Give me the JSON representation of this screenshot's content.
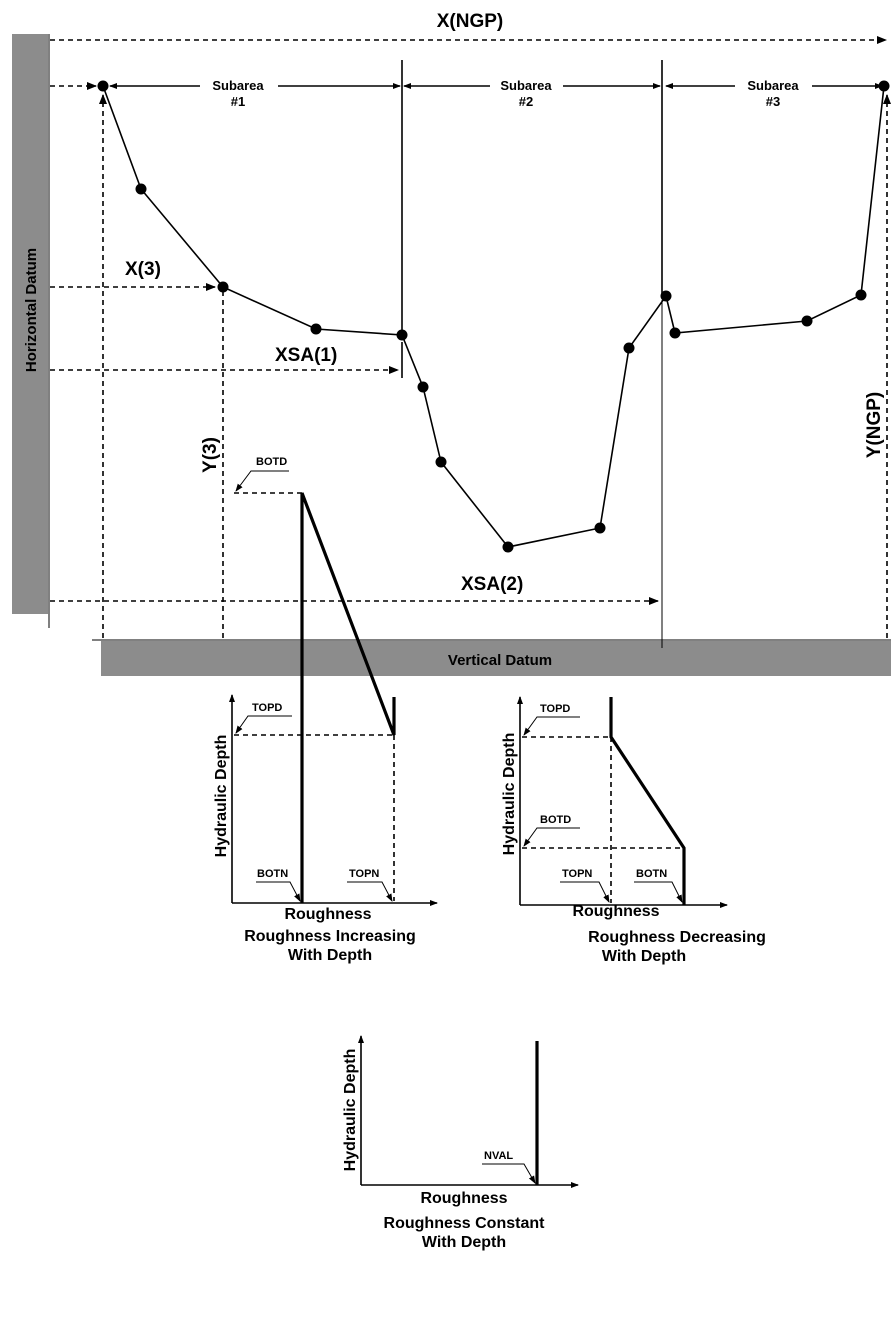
{
  "cross_section": {
    "title": "X(NGP)",
    "horizontal_datum_label": "Horizontal Datum",
    "vertical_datum_label": "Vertical Datum",
    "subareas": [
      {
        "line1": "Subarea",
        "line2": "#1"
      },
      {
        "line1": "Subarea",
        "line2": "#2"
      },
      {
        "line1": "Subarea",
        "line2": "#3"
      }
    ],
    "labels": {
      "x3": "X(3)",
      "y3": "Y(3)",
      "xsa1": "XSA(1)",
      "xsa2": "XSA(2)",
      "yngp": "Y(NGP)"
    }
  },
  "charts": {
    "increasing": {
      "ylabel": "Hydraulic Depth",
      "xlabel": "Roughness",
      "topd": "TOPD",
      "botd": "BOTD",
      "botn": "BOTN",
      "topn": "TOPN",
      "caption_line1": "Roughness Increasing",
      "caption_line2": "With Depth"
    },
    "decreasing": {
      "ylabel": "Hydraulic Depth",
      "xlabel": "Roughness",
      "topd": "TOPD",
      "botd": "BOTD",
      "topn": "TOPN",
      "botn": "BOTN",
      "caption_line1": "Roughness Decreasing",
      "caption_line2": "With Depth"
    },
    "constant": {
      "ylabel": "Hydraulic Depth",
      "xlabel": "Roughness",
      "nval": "NVAL",
      "caption_line1": "Roughness Constant",
      "caption_line2": "With Depth"
    }
  }
}
